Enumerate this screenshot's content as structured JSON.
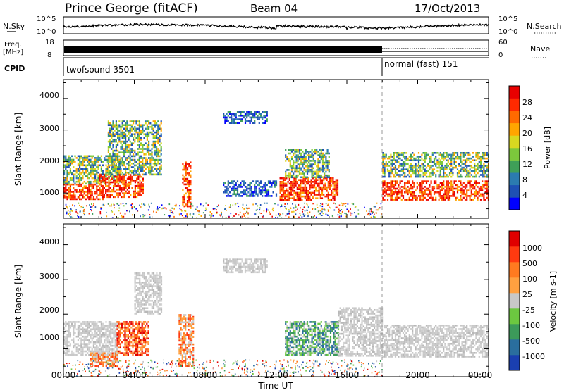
{
  "header": {
    "station": "Prince George (fitACF)",
    "beam": "Beam 04",
    "date": "17/Oct/2013"
  },
  "noise_panel": {
    "left_label": "N.Sky",
    "right_label": "N.Search",
    "left_ticks": [
      "10^5",
      "10^0"
    ],
    "right_ticks": [
      "10^5",
      "10^0"
    ]
  },
  "freq_panel": {
    "left_label_1": "Freq.",
    "left_label_2": "[MHz]",
    "left_ticks": [
      "18",
      "8"
    ],
    "right_label": "Nave",
    "right_ticks": [
      "60",
      "0"
    ]
  },
  "cpid_panel": {
    "label": "CPID",
    "segments": [
      {
        "name": "twofsound 3501",
        "start_hour": 0,
        "end_hour": 18
      },
      {
        "name": "normal (fast) 151",
        "start_hour": 18,
        "end_hour": 24
      }
    ]
  },
  "axes": {
    "ylabel": "Slant Range [km]",
    "yticks": [
      "4000",
      "3000",
      "2000",
      "1000"
    ],
    "xlabel": "Time UT",
    "xticks": [
      "00:00",
      "04:00",
      "08:00",
      "12:00",
      "16:00",
      "20:00",
      "00:00"
    ]
  },
  "power_colorbar": {
    "label": "Power [dB]",
    "ticks": [
      "28",
      "24",
      "20",
      "16",
      "12",
      "8",
      "4"
    ],
    "colors": [
      "#0000ff",
      "#1e50b4",
      "#2b7bb0",
      "#3f9f58",
      "#7cc83c",
      "#d8d820",
      "#ffa500",
      "#ff6a00",
      "#ff2a00",
      "#e80000"
    ]
  },
  "velocity_colorbar": {
    "label": "Velocity [m s-1]",
    "ticks": [
      "1000",
      "500",
      "100",
      "25",
      "-25",
      "-100",
      "-500",
      "-1000"
    ],
    "colors": [
      "#1a3fb0",
      "#2a6e9e",
      "#3c9a5a",
      "#6cc840",
      "#c8c8c8",
      "#ffa040",
      "#ff7a20",
      "#ff3a10",
      "#e00000"
    ]
  },
  "chart_data": {
    "type": "heatmap",
    "title": "Prince George (fitACF) Beam 04 17/Oct/2013",
    "xlabel": "Time UT",
    "ylabel": "Slant Range [km]",
    "xlim_hours": [
      0,
      24
    ],
    "ylim_km": [
      200,
      4600
    ],
    "mode_change_hour": 18,
    "power_regions": [
      {
        "t0": 0.0,
        "t1": 2.2,
        "r0": 800,
        "r1": 1300,
        "level": "high"
      },
      {
        "t0": 0.0,
        "t1": 3.2,
        "r0": 1300,
        "r1": 2200,
        "level": "medium"
      },
      {
        "t0": 2.0,
        "t1": 4.5,
        "r0": 900,
        "r1": 1600,
        "level": "high"
      },
      {
        "t0": 2.5,
        "t1": 5.5,
        "r0": 1600,
        "r1": 3300,
        "level": "medium"
      },
      {
        "t0": 6.7,
        "t1": 7.2,
        "r0": 500,
        "r1": 2000,
        "level": "high"
      },
      {
        "t0": 9.0,
        "t1": 11.5,
        "r0": 3200,
        "r1": 3600,
        "level": "low"
      },
      {
        "t0": 9.0,
        "t1": 12.0,
        "r0": 900,
        "r1": 1400,
        "level": "low"
      },
      {
        "t0": 12.2,
        "t1": 15.5,
        "r0": 800,
        "r1": 1500,
        "level": "high"
      },
      {
        "t0": 12.5,
        "t1": 15.0,
        "r0": 1500,
        "r1": 2400,
        "level": "medium"
      },
      {
        "t0": 18.0,
        "t1": 24.0,
        "r0": 800,
        "r1": 1400,
        "level": "high"
      },
      {
        "t0": 18.0,
        "t1": 24.0,
        "r0": 1500,
        "r1": 2300,
        "level": "medium"
      }
    ],
    "velocity_regions": [
      {
        "t0": 0.0,
        "t1": 3.0,
        "r0": 800,
        "r1": 1800,
        "class": "near-zero"
      },
      {
        "t0": 3.0,
        "t1": 4.8,
        "r0": 800,
        "r1": 1800,
        "class": "negative-strong"
      },
      {
        "t0": 1.5,
        "t1": 3.0,
        "r0": 500,
        "r1": 900,
        "class": "negative"
      },
      {
        "t0": 4.0,
        "t1": 5.5,
        "r0": 2000,
        "r1": 3200,
        "class": "near-zero"
      },
      {
        "t0": 6.5,
        "t1": 7.3,
        "r0": 500,
        "r1": 2000,
        "class": "negative"
      },
      {
        "t0": 9.0,
        "t1": 11.5,
        "r0": 3200,
        "r1": 3600,
        "class": "near-zero"
      },
      {
        "t0": 12.5,
        "t1": 15.5,
        "r0": 800,
        "r1": 1800,
        "class": "positive"
      },
      {
        "t0": 15.5,
        "t1": 18.0,
        "r0": 800,
        "r1": 2200,
        "class": "near-zero"
      },
      {
        "t0": 18.0,
        "t1": 24.0,
        "r0": 800,
        "r1": 1700,
        "class": "near-zero"
      }
    ]
  }
}
